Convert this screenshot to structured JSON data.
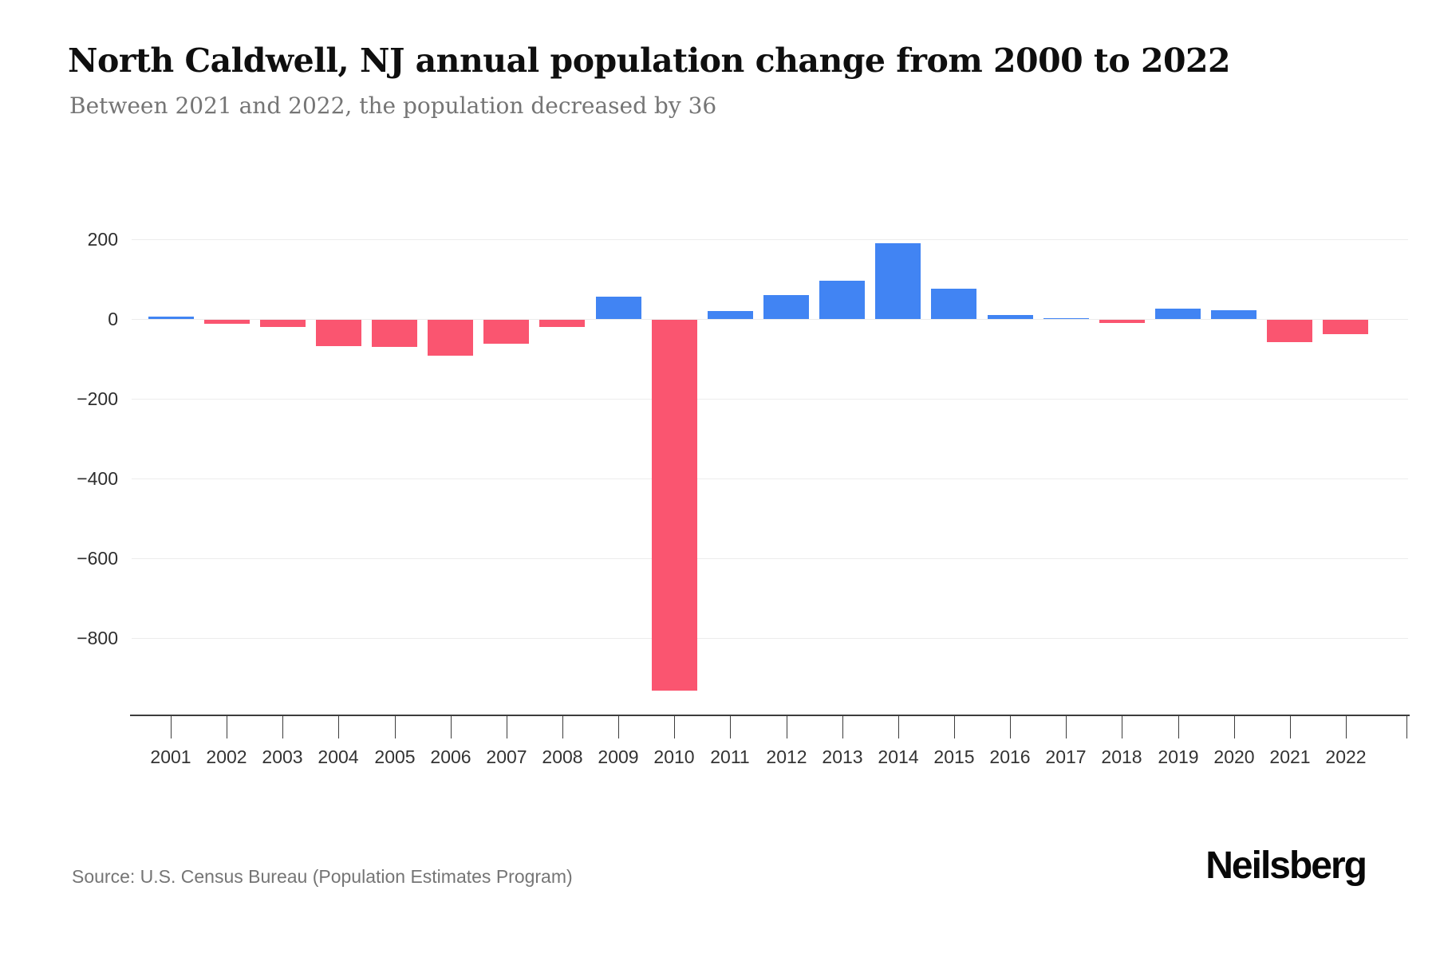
{
  "header": {
    "title": "North Caldwell, NJ annual population change from 2000 to 2022",
    "subtitle": "Between 2021 and 2022, the population decreased by 36"
  },
  "chart_data": {
    "type": "bar",
    "title": "North Caldwell, NJ annual population change from 2000 to 2022",
    "subtitle": "Between 2021 and 2022, the population decreased by 36",
    "categories": [
      "2001",
      "2002",
      "2003",
      "2004",
      "2005",
      "2006",
      "2007",
      "2008",
      "2009",
      "2010",
      "2011",
      "2012",
      "2013",
      "2014",
      "2015",
      "2016",
      "2017",
      "2018",
      "2019",
      "2020",
      "2021",
      "2022"
    ],
    "values": [
      5,
      -10,
      -18,
      -65,
      -68,
      -90,
      -60,
      -18,
      55,
      -930,
      20,
      60,
      95,
      190,
      75,
      10,
      2,
      -8,
      25,
      22,
      -55,
      -36
    ],
    "xlabel": "",
    "ylabel": "",
    "ylim": [
      -990,
      300
    ],
    "yticks": [
      {
        "value": 200,
        "label": "200"
      },
      {
        "value": 0,
        "label": "0"
      },
      {
        "value": -200,
        "label": "−200"
      },
      {
        "value": -400,
        "label": "−400"
      },
      {
        "value": -600,
        "label": "−600"
      },
      {
        "value": -800,
        "label": "−800"
      }
    ],
    "grid": "horizontal only",
    "legend": "none",
    "colors": {
      "positive_bar": "#4184F3",
      "negative_bar": "#FA5570",
      "gridline": "#ececec",
      "axis": "#3d3d3d",
      "tick_label": "#333333",
      "ytick_label": "#2e2e2e"
    }
  },
  "footer": {
    "source": "Source: U.S. Census Bureau (Population Estimates Program)",
    "logo": "Neilsberg"
  }
}
